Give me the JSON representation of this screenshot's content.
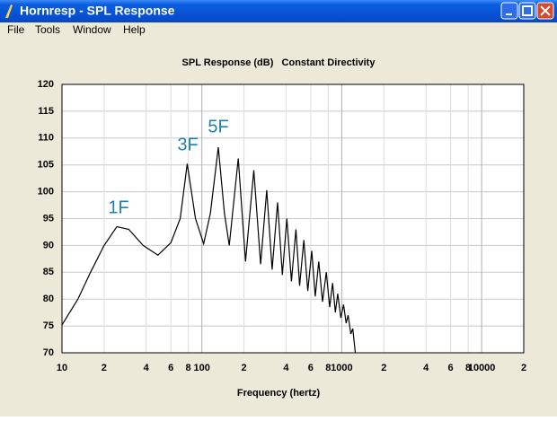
{
  "window": {
    "title": "Hornresp - SPL Response"
  },
  "menu": [
    "File",
    "Tools",
    "Window",
    "Help"
  ],
  "chart_data": {
    "type": "line",
    "title": "SPL Response (dB)   Constant Directivity",
    "x_label": "Frequency (hertz)",
    "annotations": [
      "1F",
      "3F",
      "5F"
    ],
    "log_x": true,
    "grid": true,
    "xlim": [
      10,
      20000
    ],
    "ylim": [
      70,
      120
    ],
    "xticks": [
      10,
      {
        "value": 20,
        "label": "2"
      },
      {
        "value": 40,
        "label": "4"
      },
      {
        "value": 60,
        "label": "6"
      },
      {
        "value": 80,
        "label": "8"
      },
      100,
      {
        "value": 200,
        "label": "2"
      },
      {
        "value": 400,
        "label": "4"
      },
      {
        "value": 600,
        "label": "6"
      },
      {
        "value": 800,
        "label": "8"
      },
      1000,
      {
        "value": 2000,
        "label": "2"
      },
      {
        "value": 4000,
        "label": "4"
      },
      {
        "value": 6000,
        "label": "6"
      },
      {
        "value": 8000,
        "label": "8"
      },
      10000,
      {
        "value": 20000,
        "label": "2"
      }
    ],
    "yticks": [
      70,
      75,
      80,
      85,
      90,
      95,
      100,
      105,
      110,
      115,
      120
    ],
    "series": [
      {
        "color": "#000000",
        "x": [
          10,
          13,
          16,
          20,
          24.7,
          30,
          38,
          48.5,
          60,
          70,
          78.6,
          90,
          103,
          115,
          131,
          145,
          157,
          182,
          205,
          235,
          263,
          291,
          318,
          348,
          376,
          405,
          437,
          470,
          500,
          536,
          572,
          610,
          646,
          685,
          728,
          775,
          820,
          860,
          900,
          935,
          985,
          1030,
          1075,
          1110,
          1160,
          1200,
          1250
        ],
        "values": [
          75.2,
          80,
          85,
          90,
          93.5,
          93,
          90,
          88.2,
          90.5,
          95,
          105.2,
          95,
          90.3,
          96,
          108.3,
          96,
          90,
          106.2,
          87,
          104,
          86.5,
          100.3,
          85.5,
          98,
          84.5,
          95,
          83.3,
          93,
          82.5,
          91,
          81.5,
          89,
          80.5,
          87,
          79.5,
          85,
          78.5,
          83,
          77.5,
          81,
          76.5,
          79,
          75.5,
          77,
          73.5,
          74.5,
          70
        ]
      }
    ]
  }
}
